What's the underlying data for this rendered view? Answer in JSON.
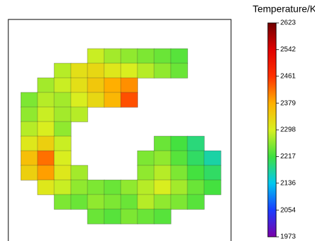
{
  "chart_data": {
    "type": "contour",
    "title": "Temperature/K",
    "zlim": [
      1973,
      2623
    ],
    "zticks": [
      1973,
      2054,
      2136,
      2217,
      2298,
      2379,
      2461,
      2542,
      2623
    ],
    "colormap": [
      "#7a00a8",
      "#1a3cff",
      "#00c8f0",
      "#3ee040",
      "#d8f020",
      "#ffb000",
      "#ff3000",
      "#e00000",
      "#700000"
    ],
    "z": [
      [
        null,
        null,
        null,
        null,
        2290,
        2270,
        2260,
        2250,
        2240,
        2230,
        null,
        null
      ],
      [
        null,
        null,
        2280,
        2320,
        2330,
        2310,
        2300,
        2280,
        2260,
        2240,
        null,
        null
      ],
      [
        null,
        2270,
        2290,
        2320,
        2350,
        2380,
        2400,
        null,
        null,
        null,
        null,
        null
      ],
      [
        2250,
        2280,
        2270,
        2300,
        2330,
        2370,
        2440,
        null,
        null,
        null,
        null,
        null
      ],
      [
        2260,
        2290,
        2270,
        2280,
        null,
        null,
        null,
        null,
        null,
        null,
        null,
        null
      ],
      [
        2280,
        2300,
        2260,
        null,
        null,
        null,
        null,
        null,
        null,
        null,
        null,
        null
      ],
      [
        2310,
        2340,
        2290,
        null,
        null,
        null,
        null,
        null,
        2240,
        2220,
        2190,
        null
      ],
      [
        2360,
        2420,
        2300,
        null,
        null,
        null,
        null,
        2250,
        2260,
        2230,
        2200,
        2170
      ],
      [
        2340,
        2390,
        2310,
        2270,
        null,
        null,
        null,
        2260,
        2280,
        2250,
        2220,
        2200
      ],
      [
        null,
        2310,
        2290,
        2260,
        2250,
        2240,
        2260,
        2280,
        2300,
        2270,
        2240,
        2220
      ],
      [
        null,
        null,
        2250,
        2240,
        2260,
        2250,
        2240,
        2280,
        2260,
        2250,
        2230,
        null
      ],
      [
        null,
        null,
        null,
        null,
        2240,
        2230,
        2250,
        2240,
        2230,
        null,
        null,
        null
      ]
    ]
  }
}
